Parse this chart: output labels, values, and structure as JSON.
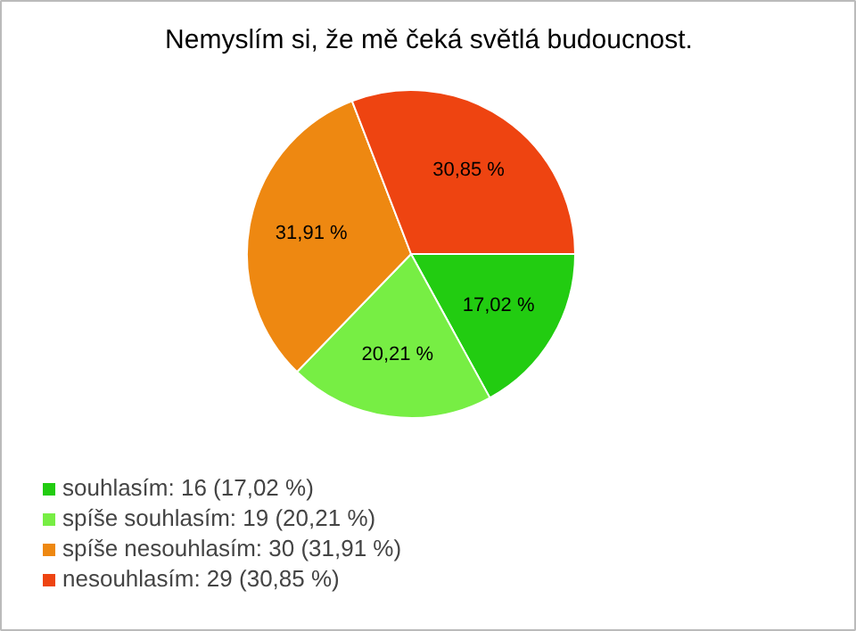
{
  "chart_data": {
    "type": "pie",
    "title": "Nemyslím si, že mě čeká světlá budoucnost.",
    "categories": [
      "souhlasím: 16 (17,02 %)",
      "spíše souhlasím: 19 (20,21 %)",
      "spíše nesouhlasím: 30 (31,91 %)",
      "nesouhlasím: 29 (30,85 %)"
    ],
    "values": [
      17.02,
      20.21,
      31.91,
      30.85
    ],
    "value_labels": [
      "17,02 %",
      "20,21 %",
      "31,91 %",
      "30,85 %"
    ],
    "colors": [
      "#22cc11",
      "#77ee44",
      "#ee8811",
      "#ee4411"
    ],
    "legend": "bottom left"
  }
}
